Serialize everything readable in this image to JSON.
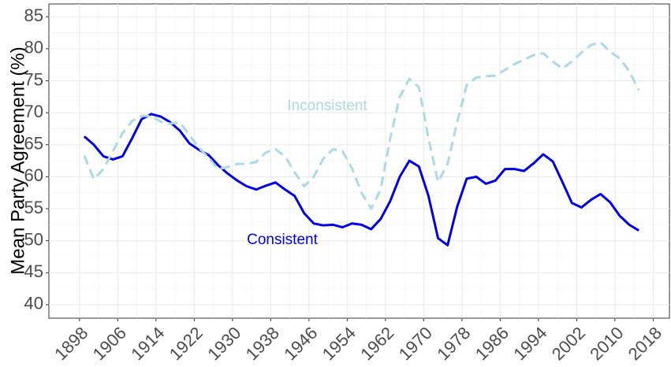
{
  "chart_data": {
    "type": "line",
    "y_label": "Mean Party Agreement (%)",
    "x": [
      1899,
      1901,
      1903,
      1905,
      1907,
      1909,
      1911,
      1913,
      1915,
      1917,
      1919,
      1921,
      1923,
      1925,
      1927,
      1929,
      1931,
      1933,
      1935,
      1937,
      1939,
      1941,
      1943,
      1945,
      1947,
      1949,
      1951,
      1953,
      1955,
      1957,
      1959,
      1961,
      1963,
      1965,
      1967,
      1969,
      1971,
      1973,
      1975,
      1977,
      1979,
      1981,
      1983,
      1985,
      1987,
      1989,
      1991,
      1993,
      1995,
      1997,
      1999,
      2001,
      2003,
      2005,
      2007,
      2009,
      2011,
      2013,
      2015
    ],
    "series": [
      {
        "name": "Consistent",
        "color": "#0000ee",
        "dashed": false,
        "values": [
          66.3,
          65,
          63.2,
          62.7,
          63.2,
          66,
          69,
          69.8,
          69.4,
          68.5,
          67.2,
          65.2,
          64.2,
          63.4,
          61.8,
          60.5,
          59.4,
          58.5,
          58,
          58.6,
          59.1,
          58,
          57,
          54.3,
          52.7,
          52.4,
          52.5,
          52.1,
          52.7,
          52.5,
          51.8,
          53.4,
          56.2,
          60,
          62.5,
          61.6,
          57,
          50.4,
          49.3,
          55.3,
          59.7,
          60,
          58.9,
          59.4,
          61.2,
          61.2,
          60.9,
          62.1,
          63.5,
          62.4,
          59.2,
          55.9,
          55.2,
          56.4,
          57.3,
          56,
          53.9,
          52.5,
          51.6
        ]
      },
      {
        "name": "Inconsistent",
        "color": "#add8e6",
        "dashed": true,
        "values": [
          63.3,
          59.6,
          61.2,
          64,
          66.8,
          68.7,
          69.5,
          69.5,
          68.6,
          68.3,
          68.5,
          66.5,
          64.5,
          63,
          61.2,
          61.5,
          62,
          62,
          62.3,
          63.8,
          64.3,
          63.2,
          60.7,
          58.5,
          60,
          62.8,
          64.3,
          64,
          61.3,
          57.5,
          55,
          58,
          66,
          72.5,
          75.3,
          74,
          66,
          59.2,
          62,
          68.5,
          74.3,
          75.5,
          75.7,
          75.8,
          76.7,
          77.6,
          78.3,
          79,
          79.3,
          78,
          76.9,
          78,
          79.4,
          80.6,
          81,
          79.5,
          78.5,
          76.5,
          73.5
        ]
      }
    ],
    "xlim": [
      1891.6,
      2021.4
    ],
    "xticks": [
      1898,
      1906,
      1914,
      1922,
      1930,
      1938,
      1946,
      1954,
      1962,
      1970,
      1978,
      1986,
      1994,
      2002,
      2010,
      2018
    ],
    "ylim": [
      37.9,
      87
    ],
    "yticks": [
      40,
      45,
      50,
      55,
      60,
      65,
      70,
      75,
      80,
      85
    ],
    "grid": true
  }
}
